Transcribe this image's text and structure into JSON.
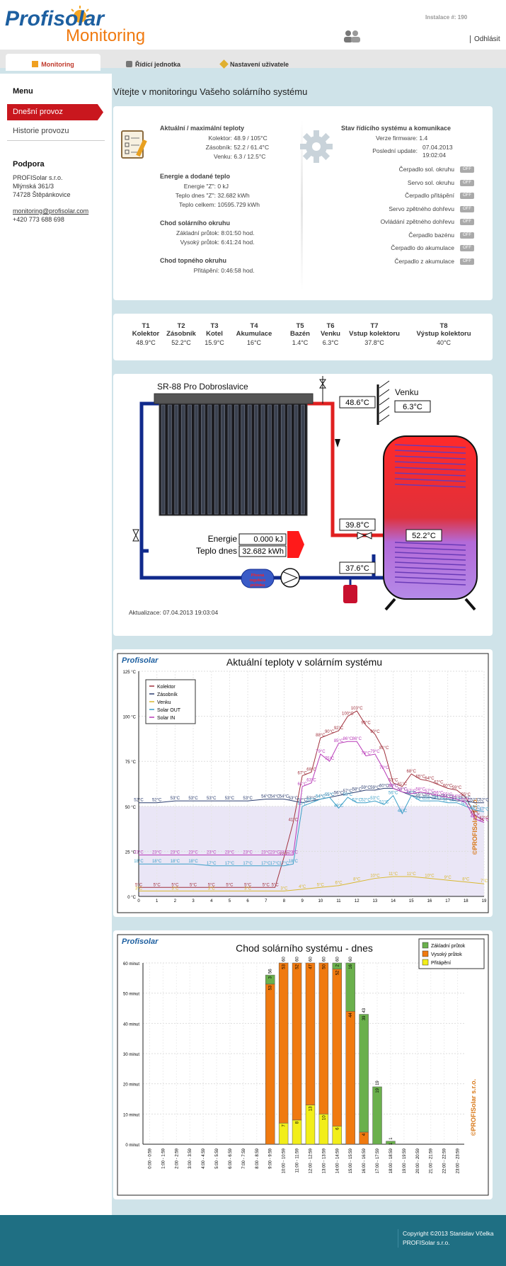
{
  "header": {
    "logo_top": "Profisolar",
    "logo_bottom": "Monitoring",
    "installation": "Instalace #: 190",
    "logout": "Odhlásit"
  },
  "tabs": [
    {
      "label": "Monitoring"
    },
    {
      "label": "Řídící jednotka"
    },
    {
      "label": "Nastavení uživatele"
    }
  ],
  "sidebar": {
    "menu_title": "Menu",
    "items": [
      {
        "label": "Dnešní provoz"
      },
      {
        "label": "Historie provozu"
      }
    ],
    "support_title": "Podpora",
    "company": "PROFISolar s.r.o.",
    "street": "Mlýnská 361/3",
    "city": "74728 Štěpánkovice",
    "email": "monitoring@profisolar.com",
    "phone": "+420 773 688 698"
  },
  "main_title": "Vítejte v monitoringu Vašeho solárního systému",
  "status": {
    "temps_title": "Aktuální / maximální teploty",
    "temps": [
      {
        "k": "Kolektor:",
        "v": "48.9 / 105°C"
      },
      {
        "k": "Zásobník:",
        "v": "52.2 / 61.4°C"
      },
      {
        "k": "Venku:",
        "v": "6.3 / 12.5°C"
      }
    ],
    "energy_title": "Energie a dodané teplo",
    "energy": [
      {
        "k": "Energie \"Z\":",
        "v": "0 kJ"
      },
      {
        "k": "Teplo dnes \"Z\":",
        "v": "32.682 kWh"
      },
      {
        "k": "Teplo celkem:",
        "v": "10595.729 kWh"
      }
    ],
    "solar_title": "Chod solárního okruhu",
    "solar": [
      {
        "k": "Základní průtok:",
        "v": "8:01:50 hod."
      },
      {
        "k": "Vysoký průtok:",
        "v": "6:41:24 hod."
      }
    ],
    "heating_title": "Chod topného okruhu",
    "heating": [
      {
        "k": "Přitápění:",
        "v": "0:46:58 hod."
      }
    ],
    "sys_title": "Stav řídícího systému a komunikace",
    "firmware_k": "Verze firmware:",
    "firmware_v": "1.4",
    "update_k": "Poslední update:",
    "update_date": "07.04.2013",
    "update_time": "19:02:04",
    "switches": [
      {
        "label": "Čerpadlo sol. okruhu",
        "state": "OFF"
      },
      {
        "label": "Servo sol. okruhu",
        "state": "OFF"
      },
      {
        "label": "Čerpadlo přitápění",
        "state": "OFF"
      },
      {
        "label": "Servo zpětného dohřevu",
        "state": "OFF"
      },
      {
        "label": "Ovládání zpětného dohřevu",
        "state": "OFF"
      },
      {
        "label": "Čerpadlo bazénu",
        "state": "OFF"
      },
      {
        "label": "Čerpadlo do akumulace",
        "state": "OFF"
      },
      {
        "label": "Čerpadlo z akumulace",
        "state": "OFF"
      }
    ]
  },
  "sensors": [
    {
      "id": "T1",
      "name": "Kolektor",
      "value": "48.9°C"
    },
    {
      "id": "T2",
      "name": "Zásobník",
      "value": "52.2°C"
    },
    {
      "id": "T3",
      "name": "Kotel",
      "value": "15.9°C"
    },
    {
      "id": "T4",
      "name": "Akumulace",
      "value": "16°C"
    },
    {
      "id": "T5",
      "name": "Bazén",
      "value": "1.4°C"
    },
    {
      "id": "T6",
      "name": "Venku",
      "value": "6.3°C"
    },
    {
      "id": "T7",
      "name": "Vstup kolektoru",
      "value": "37.8°C"
    },
    {
      "id": "T8",
      "name": "Výstup kolektoru",
      "value": "40°C"
    }
  ],
  "schema": {
    "title": "SR-88 Pro Dobroslavice",
    "outside_label": "Venku",
    "outside": "6.3°C",
    "collector_out": "48.6°C",
    "return_in": "39.8°C",
    "return_low": "37.6°C",
    "tank": "52.2°C",
    "energy_label": "Energie",
    "energy": "0.000 kJ",
    "heat_label": "Teplo dnes",
    "heat": "32.682 kWh",
    "flow_label": "Přesná regulace průtoku",
    "updated": "Aktualizace: 07.04.2013 19:03:04"
  },
  "chart_data": [
    {
      "type": "line",
      "title": "Aktuální teploty v solárním systému",
      "ylim": [
        0,
        125
      ],
      "yticks": [
        "0 °C",
        "25 °C",
        "50 °C",
        "75 °C",
        "100 °C",
        "125 °C"
      ],
      "xticks": [
        "0",
        "1",
        "2",
        "3",
        "4",
        "5",
        "6",
        "7",
        "8",
        "9",
        "10",
        "11",
        "12",
        "13",
        "14",
        "15",
        "16",
        "17",
        "18",
        "19"
      ],
      "series": [
        {
          "name": "Kolektor",
          "color": "#a0303c",
          "x": [
            0,
            1,
            2,
            3,
            4,
            5,
            6,
            7,
            7.5,
            8,
            8.5,
            9,
            9.5,
            10,
            10.5,
            11,
            11.5,
            12,
            12.5,
            13,
            13.5,
            14,
            14.5,
            15,
            15.5,
            16,
            16.5,
            17,
            17.5,
            18,
            18.5,
            19
          ],
          "y": [
            5,
            5,
            5,
            5,
            5,
            5,
            5,
            5,
            5,
            22,
            41,
            67,
            69,
            88,
            90,
            92,
            100,
            103,
            95,
            90,
            81,
            63,
            61,
            68,
            65,
            64,
            62,
            60,
            59,
            55,
            45,
            42
          ]
        },
        {
          "name": "Zásobník",
          "color": "#2c3e70",
          "x": [
            0,
            1,
            2,
            3,
            4,
            5,
            6,
            7,
            7.5,
            8,
            8.5,
            9,
            9.5,
            10,
            10.5,
            11,
            11.5,
            12,
            12.5,
            13,
            13.5,
            14,
            14.5,
            15,
            15.5,
            16,
            16.5,
            17,
            17.5,
            18,
            18.5,
            19
          ],
          "y": [
            52,
            52,
            53,
            53,
            53,
            53,
            53,
            54,
            54,
            54,
            53,
            52,
            53,
            54,
            55,
            56,
            57,
            58,
            59,
            59,
            60,
            60,
            58,
            56,
            55,
            55,
            54,
            54,
            53,
            53,
            52,
            52
          ]
        },
        {
          "name": "Venku",
          "color": "#d9b830",
          "x": [
            0,
            2,
            4,
            6,
            8,
            9,
            10,
            11,
            12,
            13,
            14,
            15,
            16,
            17,
            18,
            19
          ],
          "y": [
            3,
            3,
            3,
            3,
            3,
            4,
            5,
            6,
            8,
            10,
            11,
            11,
            10,
            9,
            8,
            7
          ]
        },
        {
          "name": "Solar OUT",
          "color": "#3a9ec7",
          "x": [
            0,
            1,
            2,
            3,
            4,
            5,
            6,
            7,
            7.5,
            8,
            8.5,
            9,
            9.5,
            10,
            10.5,
            11,
            11.5,
            12,
            12.5,
            13,
            13.5,
            14,
            14.5,
            15,
            15.5,
            16,
            16.5,
            17,
            17.5,
            18,
            18.5,
            19
          ],
          "y": [
            18,
            18,
            18,
            18,
            17,
            17,
            17,
            17,
            17,
            17,
            18,
            50,
            52,
            54,
            55,
            49,
            55,
            52,
            52,
            53,
            51,
            56,
            46,
            56,
            53,
            53,
            53,
            52,
            52,
            50,
            48,
            47
          ]
        },
        {
          "name": "Solar IN",
          "color": "#b83ab8",
          "x": [
            0,
            1,
            2,
            3,
            4,
            5,
            6,
            7,
            7.5,
            8,
            8.5,
            9,
            9.5,
            10,
            10.5,
            11,
            11.5,
            12,
            12.5,
            13,
            13.5,
            14,
            14.5,
            15,
            15.5,
            16,
            16.5,
            17,
            17.5,
            18,
            18.5,
            19
          ],
          "y": [
            23,
            23,
            23,
            23,
            23,
            23,
            23,
            23,
            23,
            23,
            23,
            61,
            63,
            79,
            75,
            85,
            86,
            86,
            78,
            79,
            70,
            60,
            58,
            57,
            58,
            57,
            56,
            55,
            54,
            52,
            43,
            41
          ]
        }
      ]
    },
    {
      "type": "bar",
      "title": "Chod solárního systému - dnes",
      "ylim": [
        0,
        60
      ],
      "yticks": [
        "0 minut",
        "10 minut",
        "20 minut",
        "30 minut",
        "40 minut",
        "50 minut",
        "60 minut"
      ],
      "categories": [
        "0:00 - 0:59",
        "1:00 - 1:59",
        "2:00 - 2:59",
        "3:00 - 3:59",
        "4:00 - 4:59",
        "5:00 - 5:59",
        "6:00 - 6:59",
        "7:00 - 7:59",
        "8:00 - 8:59",
        "9:00 - 9:59",
        "10:00 - 10:59",
        "11:00 - 11:59",
        "12:00 - 12:59",
        "13:00 - 13:59",
        "14:00 - 14:59",
        "15:00 - 15:59",
        "16:00 - 16:59",
        "17:00 - 17:59",
        "18:00 - 18:59",
        "19:00 - 19:59",
        "20:00 - 20:59",
        "21:00 - 21:59",
        "22:00 - 22:59",
        "23:00 - 23:59"
      ],
      "series": [
        {
          "name": "Základní průtok",
          "color": "#6ab04c",
          "values": [
            0,
            0,
            0,
            0,
            0,
            0,
            0,
            0,
            0,
            3,
            0,
            0,
            0,
            0,
            2,
            16,
            39,
            19,
            1,
            0,
            0,
            0,
            0,
            0
          ]
        },
        {
          "name": "Vysoký průtok",
          "color": "#f07a10",
          "values": [
            0,
            0,
            0,
            0,
            0,
            0,
            0,
            0,
            0,
            53,
            53,
            52,
            47,
            50,
            52,
            44,
            4,
            0,
            0,
            0,
            0,
            0,
            0,
            0
          ]
        },
        {
          "name": "Přitápění",
          "color": "#f2ee1a",
          "values": [
            0,
            0,
            0,
            0,
            0,
            0,
            0,
            0,
            0,
            0,
            7,
            8,
            13,
            10,
            6,
            0,
            0,
            0,
            0,
            0,
            0,
            0,
            0,
            0
          ]
        }
      ],
      "labels": [
        {
          "i": 9,
          "v": "56"
        },
        {
          "i": 10,
          "v": "60"
        },
        {
          "i": 11,
          "v": "60"
        },
        {
          "i": 12,
          "v": "60"
        },
        {
          "i": 13,
          "v": "60"
        },
        {
          "i": 14,
          "v": "60"
        },
        {
          "i": 15,
          "v": "60"
        },
        {
          "i": 16,
          "v": "43"
        },
        {
          "i": 17,
          "v": "19"
        },
        {
          "i": 18,
          "v": "1"
        }
      ]
    }
  ],
  "watermark": "©PROFISolar s.r.o.",
  "footer": {
    "copyright": "Copyright ©2013 Stanislav Včelka",
    "company": "PROFISolar s.r.o."
  }
}
